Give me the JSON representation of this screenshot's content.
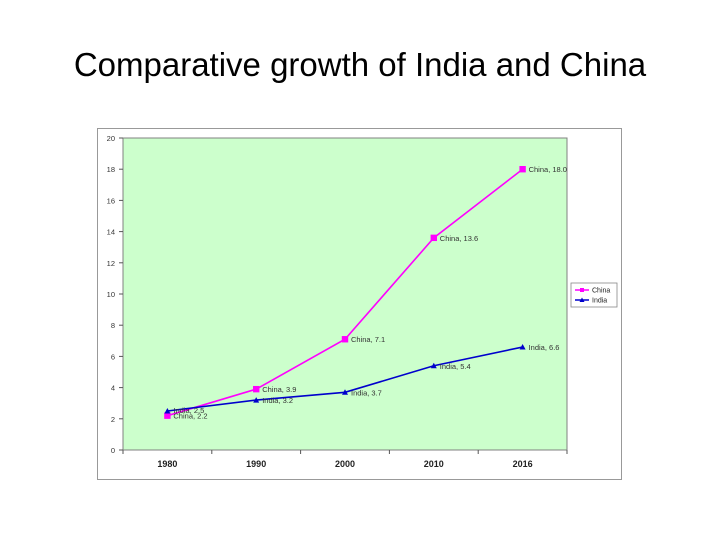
{
  "slide": {
    "title": "Comparative growth of India and China"
  },
  "chart_data": {
    "type": "line",
    "title": "",
    "xlabel": "",
    "ylabel": "",
    "categories": [
      "1980",
      "1990",
      "2000",
      "2010",
      "2016"
    ],
    "ylim": [
      0,
      20
    ],
    "yticks": [
      "0",
      "2",
      "4",
      "6",
      "8",
      "10",
      "12",
      "14",
      "16",
      "18",
      "20"
    ],
    "grid": false,
    "background_color": "#ccffcc",
    "legend_position": "right",
    "series": [
      {
        "name": "China",
        "color": "#ff00ff",
        "marker": "square",
        "values": [
          2.2,
          3.9,
          7.1,
          13.6,
          18.0
        ],
        "data_labels": [
          "China, 2.2",
          "China, 3.9",
          "China, 7.1",
          "China, 13.6",
          "China, 18.0"
        ]
      },
      {
        "name": "India",
        "color": "#0000cc",
        "marker": "triangle",
        "values": [
          2.5,
          3.2,
          3.7,
          5.4,
          6.6
        ],
        "data_labels": [
          "India, 2.5",
          "India, 3.2",
          "India, 3.7",
          "India, 5.4",
          "India, 6.6"
        ]
      }
    ]
  }
}
